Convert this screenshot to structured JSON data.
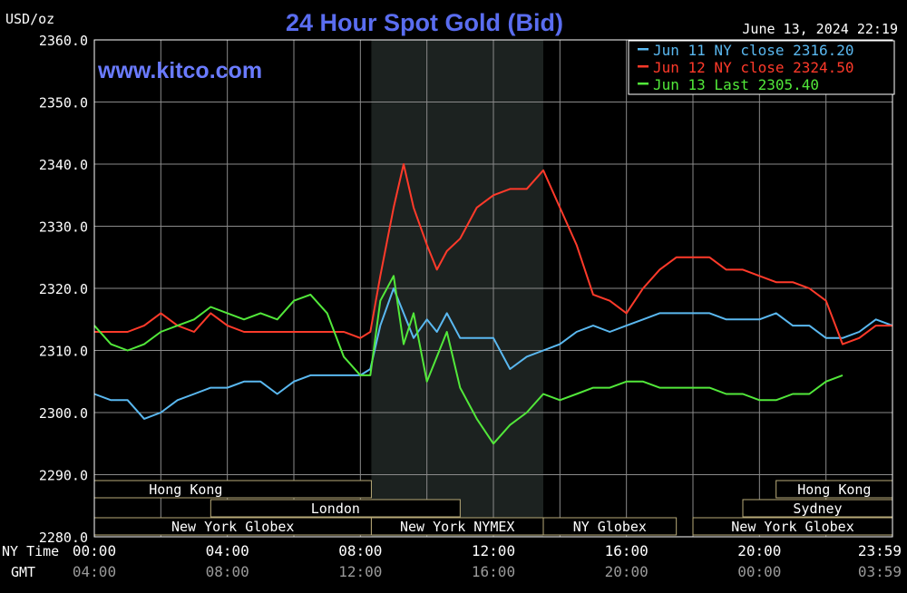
{
  "chart_data": {
    "type": "line",
    "title": "24 Hour Spot Gold (Bid)",
    "unit_label": "USD/oz",
    "watermark": "www.kitco.com",
    "timestamp": "June 13, 2024 22:19",
    "ylim": [
      2280,
      2360
    ],
    "y_ticks": [
      "2360.0",
      "2350.0",
      "2340.0",
      "2330.0",
      "2320.0",
      "2310.0",
      "2300.0",
      "2290.0",
      "2280.0"
    ],
    "x_row_labels": [
      "NY Time",
      "GMT"
    ],
    "x_ticks_ny": [
      "00:00",
      "04:00",
      "08:00",
      "12:00",
      "16:00",
      "20:00",
      "23:59"
    ],
    "x_ticks_gmt": [
      "04:00",
      "08:00",
      "12:00",
      "16:00",
      "20:00",
      "00:00",
      "03:59"
    ],
    "x_tick_hours": [
      0,
      4,
      8,
      12,
      16,
      20,
      23.983
    ],
    "highlight_hours": [
      8.33,
      13.5
    ],
    "grid": true,
    "legend_position": "top-right",
    "colors": {
      "background": "#000000",
      "plot_bg": "#000000",
      "highlight_bg": "#1c2220",
      "grid": "#8a8a8a",
      "axis_text": "#ffffff",
      "gmt_text": "#9a9a9a",
      "title": "#5a6df0",
      "watermark": "#6a7bff",
      "session_bg": "#000000",
      "session_border": "#b8aa78"
    },
    "series": [
      {
        "name": "Jun 11 NY close",
        "label": "Jun 11 NY close 2316.20",
        "color": "#5ab8f0",
        "x": [
          0,
          0.5,
          1,
          1.5,
          2,
          2.5,
          3,
          3.5,
          4,
          4.5,
          5,
          5.5,
          6,
          6.5,
          7,
          7.5,
          8,
          8.3,
          8.6,
          9,
          9.3,
          9.6,
          10,
          10.3,
          10.6,
          11,
          11.5,
          12,
          12.5,
          13,
          13.5,
          14,
          14.5,
          15,
          15.5,
          16,
          16.5,
          17,
          17.5,
          18,
          18.5,
          19,
          19.5,
          20,
          20.5,
          21,
          21.5,
          22,
          22.5,
          23,
          23.5,
          24
        ],
        "values": [
          2303,
          2302,
          2302,
          2299,
          2300,
          2302,
          2303,
          2304,
          2304,
          2305,
          2305,
          2303,
          2305,
          2306,
          2306,
          2306,
          2306,
          2307,
          2314,
          2320,
          2316,
          2312,
          2315,
          2313,
          2316,
          2312,
          2312,
          2312,
          2307,
          2309,
          2310,
          2311,
          2313,
          2314,
          2313,
          2314,
          2315,
          2316,
          2316,
          2316,
          2316,
          2315,
          2315,
          2315,
          2316,
          2314,
          2314,
          2312,
          2312,
          2313,
          2315,
          2314
        ]
      },
      {
        "name": "Jun 12 NY close",
        "label": "Jun 12 NY close 2324.50",
        "color": "#ff3a2a",
        "x": [
          0,
          0.5,
          1,
          1.5,
          2,
          2.5,
          3,
          3.5,
          4,
          4.5,
          5,
          5.5,
          6,
          6.5,
          7,
          7.5,
          8,
          8.3,
          8.6,
          9,
          9.3,
          9.6,
          10,
          10.3,
          10.6,
          11,
          11.5,
          12,
          12.5,
          13,
          13.5,
          14,
          14.5,
          15,
          15.5,
          16,
          16.5,
          17,
          17.5,
          18,
          18.5,
          19,
          19.5,
          20,
          20.5,
          21,
          21.5,
          22,
          22.5,
          23,
          23.5,
          24
        ],
        "values": [
          2313,
          2313,
          2313,
          2314,
          2316,
          2314,
          2313,
          2316,
          2314,
          2313,
          2313,
          2313,
          2313,
          2313,
          2313,
          2313,
          2312,
          2313,
          2322,
          2333,
          2340,
          2333,
          2327,
          2323,
          2326,
          2328,
          2333,
          2335,
          2336,
          2336,
          2339,
          2333,
          2327,
          2319,
          2318,
          2316,
          2320,
          2323,
          2325,
          2325,
          2325,
          2323,
          2323,
          2322,
          2321,
          2321,
          2320,
          2318,
          2311,
          2312,
          2314,
          2314
        ]
      },
      {
        "name": "Jun 13 Last",
        "label": "Jun 13 Last 2305.40",
        "color": "#52e83a",
        "x": [
          0,
          0.5,
          1,
          1.5,
          2,
          2.5,
          3,
          3.5,
          4,
          4.5,
          5,
          5.5,
          6,
          6.5,
          7,
          7.5,
          8,
          8.3,
          8.6,
          9,
          9.3,
          9.6,
          10,
          10.3,
          10.6,
          11,
          11.5,
          12,
          12.5,
          13,
          13.5,
          14,
          14.5,
          15,
          15.5,
          16,
          16.5,
          17,
          17.5,
          18,
          18.5,
          19,
          19.5,
          20,
          20.5,
          21,
          21.5,
          22,
          22.5
        ],
        "values": [
          2314,
          2311,
          2310,
          2311,
          2313,
          2314,
          2315,
          2317,
          2316,
          2315,
          2316,
          2315,
          2318,
          2319,
          2316,
          2309,
          2306,
          2306,
          2318,
          2322,
          2311,
          2316,
          2305,
          2309,
          2313,
          2304,
          2299,
          2295,
          2298,
          2300,
          2303,
          2302,
          2303,
          2304,
          2304,
          2305,
          2305,
          2304,
          2304,
          2304,
          2304,
          2303,
          2303,
          2302,
          2302,
          2303,
          2303,
          2305,
          2306
        ]
      }
    ],
    "sessions": [
      {
        "label": "Hong Kong",
        "start": 0,
        "end": 8.33,
        "row": 0,
        "label_start": 0,
        "label_end": 5.5
      },
      {
        "label": "London",
        "start": 3.5,
        "end": 11,
        "row": 1,
        "label_start": 3.5,
        "label_end": 11
      },
      {
        "label": "New York Globex",
        "start": 0,
        "end": 8.33,
        "row": 2,
        "label_start": 0,
        "label_end": 8.33
      },
      {
        "label": "New York NYMEX",
        "start": 8.33,
        "end": 13.5,
        "row": 2,
        "label_start": 8.33,
        "label_end": 13.5
      },
      {
        "label": "NY Globex",
        "start": 13.5,
        "end": 17.5,
        "row": 2,
        "label_start": 13.5,
        "label_end": 17.5
      },
      {
        "label": "Hong Kong",
        "start": 20.5,
        "end": 24,
        "row": 0,
        "label_start": 20.5,
        "label_end": 24
      },
      {
        "label": "Sydney",
        "start": 19.5,
        "end": 24,
        "row": 1,
        "label_start": 19.5,
        "label_end": 24
      },
      {
        "label": "New York Globex",
        "start": 18,
        "end": 24,
        "row": 2,
        "label_start": 18,
        "label_end": 24
      }
    ]
  }
}
